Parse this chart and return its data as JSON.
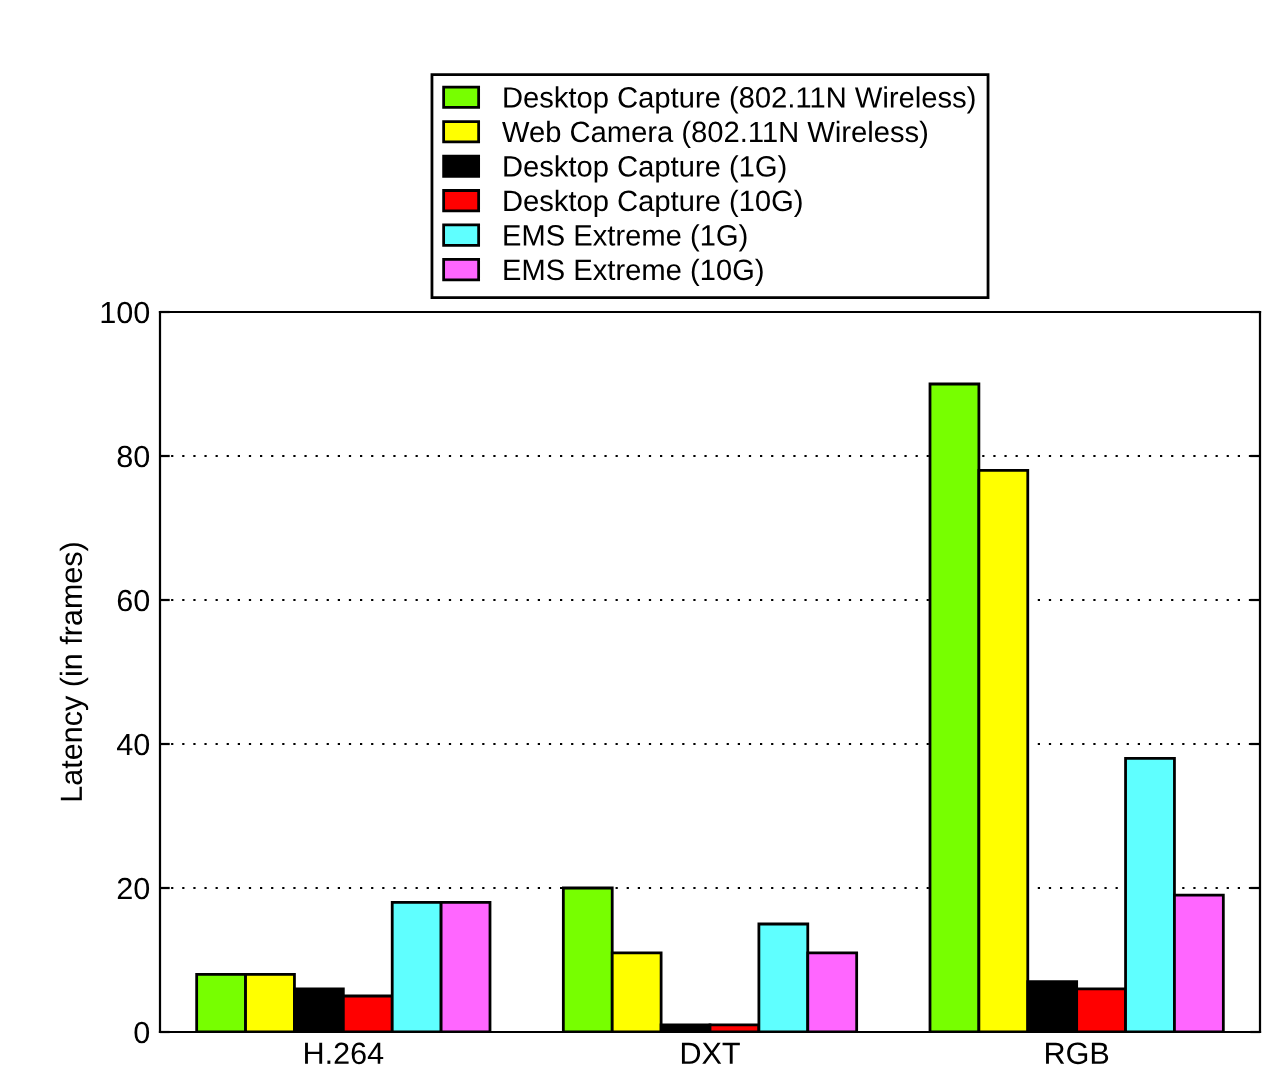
{
  "chart_data": {
    "type": "bar",
    "ylabel": "Latency (in frames)",
    "categories": [
      "H.264",
      "DXT",
      "RGB"
    ],
    "series": [
      {
        "name": "Desktop Capture (802.11N Wireless)",
        "color": "#77ff00",
        "values": [
          8,
          20,
          90
        ]
      },
      {
        "name": "Web Camera (802.11N Wireless)",
        "color": "#ffff00",
        "values": [
          8,
          11,
          78
        ]
      },
      {
        "name": "Desktop Capture (1G)",
        "color": "#000000",
        "values": [
          6,
          1,
          7
        ]
      },
      {
        "name": "Desktop Capture (10G)",
        "color": "#ff0000",
        "values": [
          5,
          1,
          6
        ]
      },
      {
        "name": "EMS Extreme (1G)",
        "color": "#5fffff",
        "values": [
          18,
          15,
          38
        ]
      },
      {
        "name": "EMS Extreme (10G)",
        "color": "#ff66ff",
        "values": [
          18,
          11,
          19
        ]
      }
    ],
    "ylim": [
      0,
      100
    ],
    "yticks": [
      0,
      20,
      40,
      60,
      80,
      100
    ],
    "grid": "y",
    "legend": "top"
  }
}
